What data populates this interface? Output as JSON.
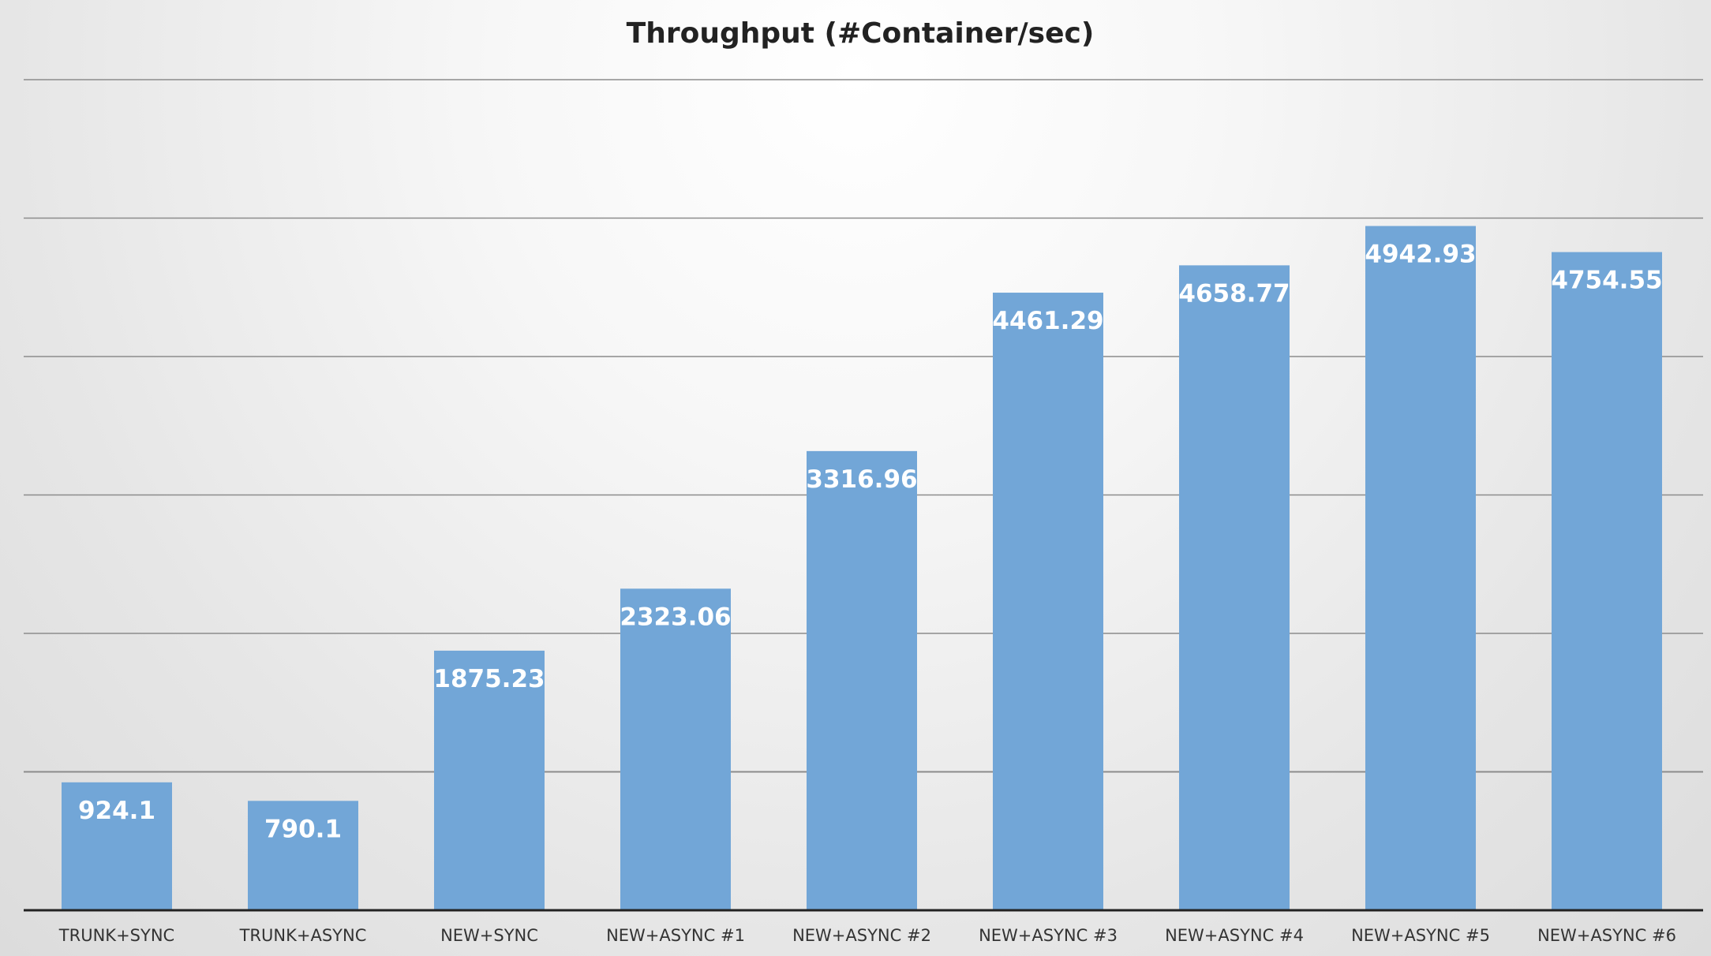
{
  "chart_data": {
    "type": "bar",
    "title": "Throughput (#Container/sec)",
    "xlabel": "",
    "ylabel": "",
    "ylim": [
      0,
      6000
    ],
    "grid": true,
    "legend": "none",
    "categories": [
      "TRUNK+SYNC",
      "TRUNK+ASYNC",
      "NEW+SYNC",
      "NEW+ASYNC #1",
      "NEW+ASYNC #2",
      "NEW+ASYNC #3",
      "NEW+ASYNC #4",
      "NEW+ASYNC #5",
      "NEW+ASYNC #6"
    ],
    "values": [
      924.1,
      790.1,
      1875.23,
      2323.06,
      3316.96,
      4461.29,
      4658.77,
      4942.93,
      4754.55
    ],
    "value_labels": [
      "924.1",
      "790.1",
      "1875.23",
      "2323.06",
      "3316.96",
      "4461.29",
      "4658.77",
      "4942.93",
      "4754.55"
    ],
    "colors": {
      "bar": "#72a6d7",
      "gridline": "#8c8c8c",
      "axis": "#222222",
      "label_text": "#ffffff",
      "tick_text": "#333333",
      "title_text": "#222222"
    }
  }
}
